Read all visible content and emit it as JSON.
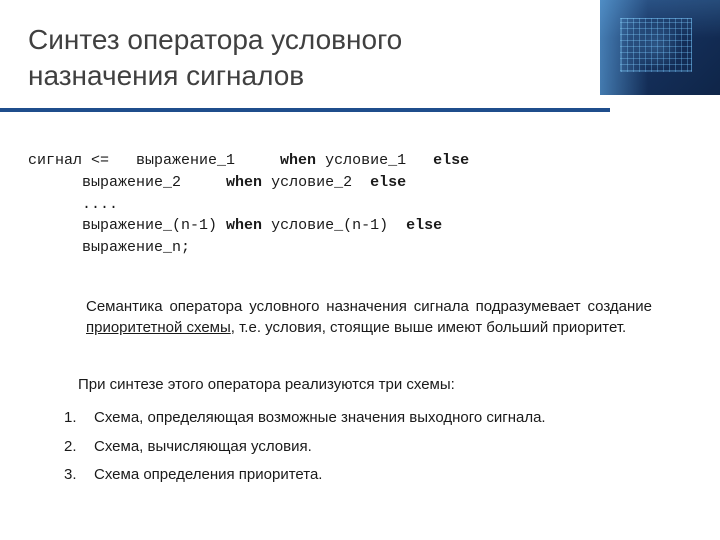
{
  "title": "Синтез оператора условного назначения сигналов",
  "rule_color": "#1f4e8c",
  "code": {
    "l1a": "сигнал <=   выражение_1     ",
    "l1w": "when",
    "l1b": " условие_1   ",
    "l1e": "else",
    "l2a": "      выражение_2     ",
    "l2w": "when",
    "l2b": " условие_2  ",
    "l2e": "else",
    "l3": "      ....",
    "l4a": "      выражение_(n-1) ",
    "l4w": "when",
    "l4b": " условие_(n-1)  ",
    "l4e": "else",
    "l5": "      выражение_n;"
  },
  "para1_a": "Семантика оператора условного назначения сигнала подразумевает создание ",
  "para1_u": "приоритетной схемы",
  "para1_b": ", т.е. условия, стоящие выше имеют больший приоритет.",
  "para2": "При синтезе этого оператора реализуются три схемы:",
  "items": [
    "Схема, определяющая возможные значения выходного сигнала.",
    "Схема, вычисляющая условия.",
    "Схема определения приоритета."
  ]
}
